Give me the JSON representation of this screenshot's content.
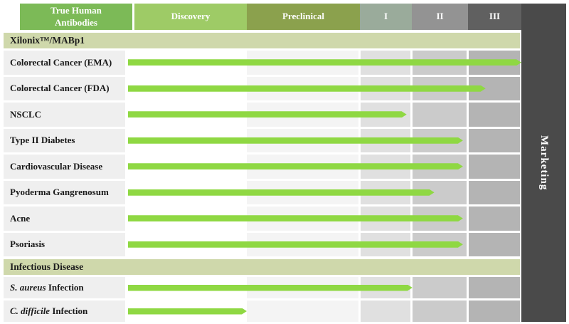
{
  "header": {
    "columns": [
      {
        "id": "true-human-antibodies",
        "label": "True Human Antibodies",
        "bg": "#7cba57"
      },
      {
        "id": "discovery",
        "label": "Discovery",
        "bg": "#9ecb66"
      },
      {
        "id": "preclinical",
        "label": "Preclinical",
        "bg": "#8ba14d"
      },
      {
        "id": "phase-1",
        "label": "I",
        "bg": "#9aab9b"
      },
      {
        "id": "phase-2",
        "label": "II",
        "bg": "#939393"
      },
      {
        "id": "phase-3",
        "label": "III",
        "bg": "#606060"
      }
    ],
    "marketing_label": "Marketing",
    "marketing_bg": "#4a4a4a"
  },
  "sections": [
    {
      "title": "Xilonix™/MABp1",
      "rows": [
        {
          "label_italic": "",
          "label": "Colorectal Cancer (EMA)",
          "value": 5.0,
          "stage_reached": "Phase III complete"
        },
        {
          "label_italic": "",
          "label": "Colorectal Cancer (FDA)",
          "value": 4.33,
          "stage_reached": "Phase III"
        },
        {
          "label_italic": "",
          "label": "NSCLC",
          "value": 2.9,
          "stage_reached": "Phase I"
        },
        {
          "label_italic": "",
          "label": "Type II Diabetes",
          "value": 3.91,
          "stage_reached": "Phase II complete"
        },
        {
          "label_italic": "",
          "label": "Cardiovascular Disease",
          "value": 3.91,
          "stage_reached": "Phase II complete"
        },
        {
          "label_italic": "",
          "label": "Pyoderma Gangrenosum",
          "value": 3.4,
          "stage_reached": "Phase II"
        },
        {
          "label_italic": "",
          "label": "Acne",
          "value": 3.91,
          "stage_reached": "Phase II complete"
        },
        {
          "label_italic": "",
          "label": "Psoriasis",
          "value": 3.91,
          "stage_reached": "Phase II complete"
        }
      ]
    },
    {
      "title": "Infectious Disease",
      "rows": [
        {
          "label_italic": "S. aureus",
          "label": " Infection",
          "value": 3.01,
          "stage_reached": "Phase I complete"
        },
        {
          "label_italic": "C. difficile",
          "label": " Infection",
          "value": 1.0,
          "stage_reached": "Discovery complete"
        }
      ]
    }
  ],
  "colors": {
    "bar_green": "#8fd843",
    "section_band": "#cfd8ab",
    "label_cell": "#efefef",
    "row_cells": [
      "#f4f4f4",
      "#e0e0e0",
      "#cbcbcb",
      "#b4b4b4"
    ],
    "marketing_bg": "#4a4a4a",
    "text": "#1a1a1a"
  },
  "chart_data": {
    "type": "bar",
    "title": "",
    "orientation": "horizontal",
    "stages": [
      "Discovery",
      "Preclinical",
      "I",
      "II",
      "III",
      "Marketing"
    ],
    "categories": [
      "Colorectal Cancer (EMA)",
      "Colorectal Cancer (FDA)",
      "NSCLC",
      "Type II Diabetes",
      "Cardiovascular Disease",
      "Pyoderma Gangrenosum",
      "Acne",
      "Psoriasis",
      "S. aureus Infection",
      "C. difficile Infection"
    ],
    "groups": [
      "Xilonix™/MABp1",
      "Xilonix™/MABp1",
      "Xilonix™/MABp1",
      "Xilonix™/MABp1",
      "Xilonix™/MABp1",
      "Xilonix™/MABp1",
      "Xilonix™/MABp1",
      "Xilonix™/MABp1",
      "Infectious Disease",
      "Infectious Disease"
    ],
    "values": [
      5.0,
      4.33,
      2.9,
      3.91,
      3.91,
      3.4,
      3.91,
      3.91,
      3.01,
      1.0
    ],
    "value_unit": "development stages completed (1 = Discovery done, 2 = Preclinical done, 3 = Phase I done, 4 = Phase II done, 5 = Phase III done / at Marketing)",
    "xlim": [
      0,
      6
    ],
    "legend": "none",
    "grid": "off"
  }
}
